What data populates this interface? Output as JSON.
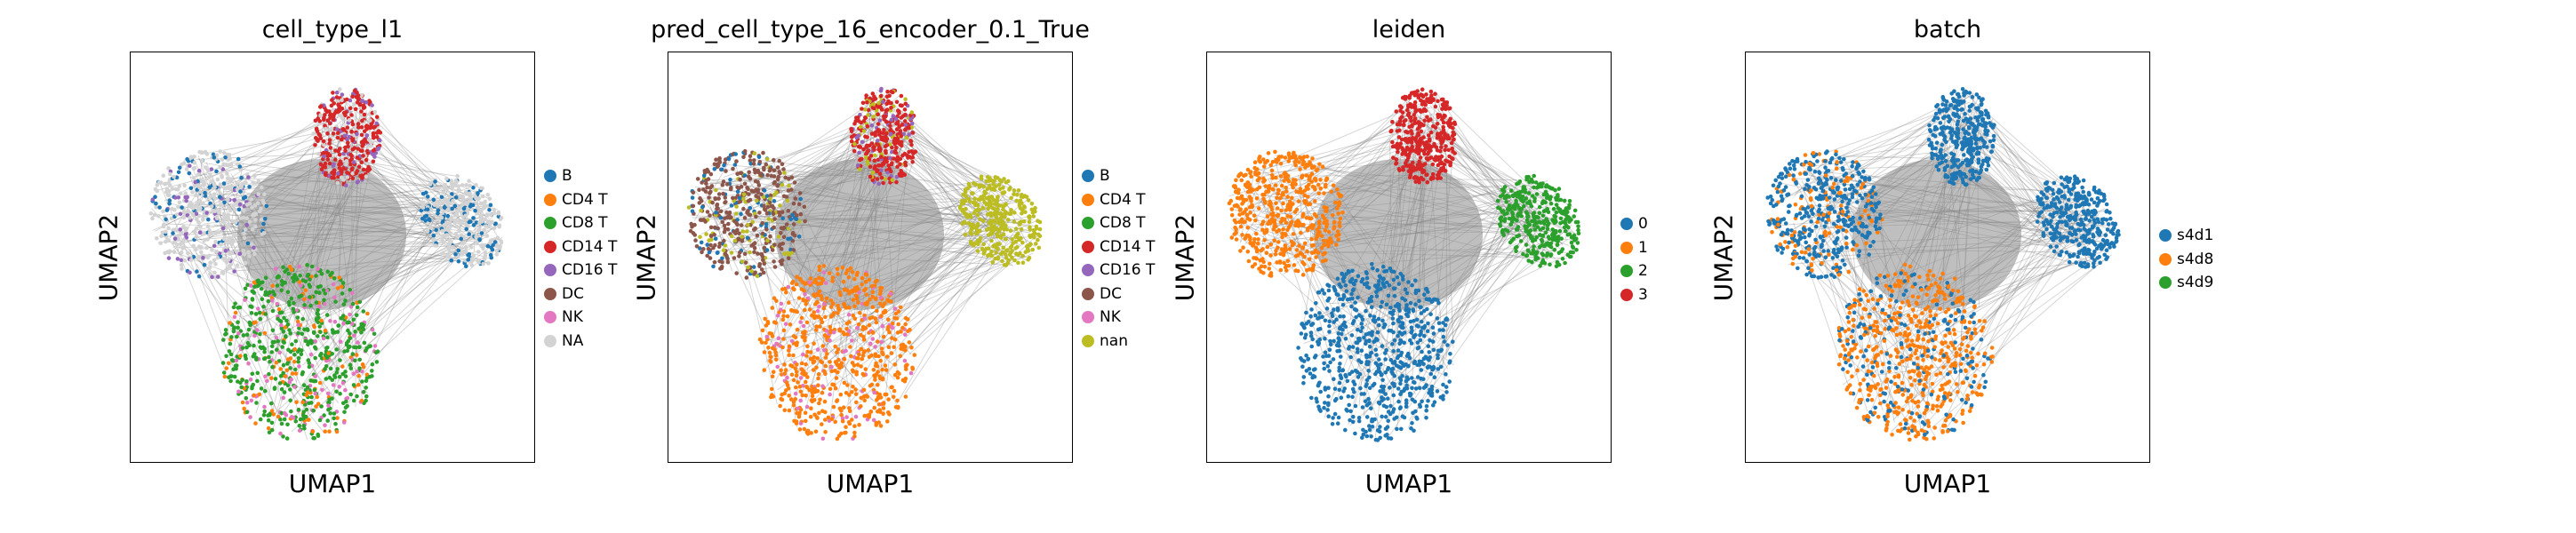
{
  "chart_data": [
    {
      "type": "scatter",
      "title": "cell_type_l1",
      "xlabel": "UMAP1",
      "ylabel": "UMAP2",
      "grid": false,
      "legend_position": "right",
      "categories": [
        "B",
        "CD4 T",
        "CD8 T",
        "CD14 T",
        "CD16 T",
        "DC",
        "NK",
        "NA"
      ],
      "colors": [
        "#1f77b4",
        "#ff7f0e",
        "#2ca02c",
        "#d62728",
        "#9467bd",
        "#8c564b",
        "#e377c2",
        "#d3d3d3"
      ],
      "clusters": {
        "left": [
          "#d3d3d3",
          "#1f77b4",
          "#9467bd"
        ],
        "bottom": [
          "#2ca02c",
          "#ff7f0e",
          "#e377c2"
        ],
        "top": [
          "#d62728",
          "#9467bd",
          "#d3d3d3"
        ],
        "right": [
          "#d3d3d3",
          "#1f77b4"
        ]
      }
    },
    {
      "type": "scatter",
      "title": "pred_cell_type_16_encoder_0.1_True",
      "xlabel": "UMAP1",
      "ylabel": "UMAP2",
      "grid": false,
      "legend_position": "right",
      "categories": [
        "B",
        "CD4 T",
        "CD8 T",
        "CD14 T",
        "CD16 T",
        "DC",
        "NK",
        "nan"
      ],
      "colors": [
        "#1f77b4",
        "#ff7f0e",
        "#2ca02c",
        "#d62728",
        "#9467bd",
        "#8c564b",
        "#e377c2",
        "#bcbd22"
      ],
      "clusters": {
        "left": [
          "#8c564b",
          "#bcbd22",
          "#1f77b4"
        ],
        "bottom": [
          "#ff7f0e",
          "#ff7f0e",
          "#e377c2"
        ],
        "top": [
          "#d62728",
          "#9467bd",
          "#bcbd22"
        ],
        "right": [
          "#bcbd22",
          "#bcbd22"
        ]
      }
    },
    {
      "type": "scatter",
      "title": "leiden",
      "xlabel": "UMAP1",
      "ylabel": "UMAP2",
      "grid": false,
      "legend_position": "right",
      "categories": [
        "0",
        "1",
        "2",
        "3"
      ],
      "colors": [
        "#1f77b4",
        "#ff7f0e",
        "#2ca02c",
        "#d62728"
      ],
      "clusters": {
        "left": [
          "#ff7f0e",
          "#ff7f0e"
        ],
        "bottom": [
          "#1f77b4",
          "#1f77b4"
        ],
        "top": [
          "#d62728",
          "#d62728"
        ],
        "right": [
          "#2ca02c",
          "#2ca02c"
        ]
      }
    },
    {
      "type": "scatter",
      "title": "batch",
      "xlabel": "UMAP1",
      "ylabel": "UMAP2",
      "grid": false,
      "legend_position": "right",
      "categories": [
        "s4d1",
        "s4d8",
        "s4d9"
      ],
      "colors": [
        "#1f77b4",
        "#ff7f0e",
        "#2ca02c"
      ],
      "clusters": {
        "left": [
          "#1f77b4",
          "#ff7f0e"
        ],
        "bottom": [
          "#ff7f0e",
          "#1f77b4"
        ],
        "top": [
          "#1f77b4",
          "#1f77b4"
        ],
        "right": [
          "#1f77b4",
          "#1f77b4"
        ]
      }
    }
  ]
}
